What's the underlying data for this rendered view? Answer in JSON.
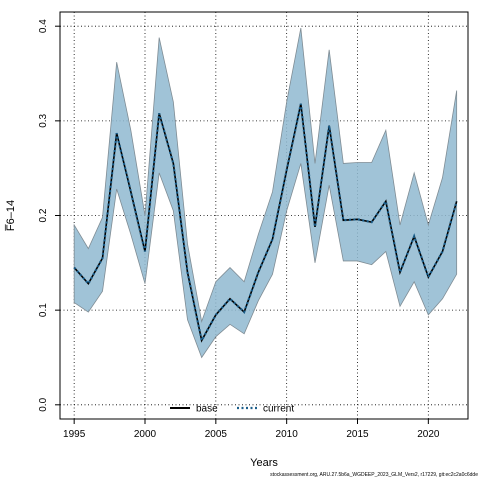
{
  "chart_data": {
    "type": "line",
    "xlabel": "Years",
    "ylabel": "F̅6–14",
    "xlim": [
      1994,
      2022.8
    ],
    "ylim": [
      -0.015,
      0.415
    ],
    "x_ticks": [
      1995,
      2000,
      2005,
      2010,
      2015,
      2020
    ],
    "y_ticks": [
      0.0,
      0.1,
      0.2,
      0.3,
      0.4
    ],
    "y_tick_labels": [
      "0.0",
      "0.1",
      "0.2",
      "0.3",
      "0.4"
    ],
    "grid": true,
    "legend_position": "bottom-left",
    "x": [
      1995,
      1996,
      1997,
      1998,
      1999,
      2000,
      2001,
      2002,
      2003,
      2004,
      2005,
      2006,
      2007,
      2008,
      2009,
      2010,
      2011,
      2012,
      2013,
      2014,
      2015,
      2016,
      2017,
      2018,
      2019,
      2020,
      2021,
      2022
    ],
    "series": [
      {
        "name": "base",
        "style": "solid",
        "color": "#000000",
        "values": [
          0.145,
          0.128,
          0.155,
          0.287,
          0.225,
          0.162,
          0.308,
          0.255,
          0.14,
          0.068,
          0.095,
          0.112,
          0.098,
          0.14,
          0.175,
          0.248,
          0.318,
          0.188,
          0.295,
          0.195,
          0.196,
          0.193,
          0.215,
          0.14,
          0.178,
          0.135,
          0.162,
          0.215
        ]
      },
      {
        "name": "current",
        "style": "dotted",
        "color": "#1b5e8a",
        "values": [
          0.145,
          0.128,
          0.155,
          0.287,
          0.225,
          0.162,
          0.308,
          0.255,
          0.14,
          0.068,
          0.095,
          0.112,
          0.098,
          0.14,
          0.175,
          0.248,
          0.318,
          0.188,
          0.295,
          0.195,
          0.196,
          0.193,
          0.215,
          0.14,
          0.178,
          0.135,
          0.162,
          0.215
        ]
      }
    ],
    "band": {
      "color": "#8fb9d0",
      "lower": [
        0.108,
        0.098,
        0.12,
        0.228,
        0.18,
        0.128,
        0.245,
        0.205,
        0.09,
        0.05,
        0.072,
        0.085,
        0.075,
        0.11,
        0.138,
        0.205,
        0.255,
        0.15,
        0.232,
        0.152,
        0.152,
        0.148,
        0.162,
        0.104,
        0.13,
        0.095,
        0.112,
        0.138
      ],
      "upper": [
        0.19,
        0.165,
        0.198,
        0.362,
        0.29,
        0.2,
        0.388,
        0.32,
        0.17,
        0.088,
        0.13,
        0.145,
        0.13,
        0.18,
        0.225,
        0.32,
        0.398,
        0.255,
        0.375,
        0.255,
        0.256,
        0.256,
        0.29,
        0.19,
        0.245,
        0.19,
        0.24,
        0.332
      ]
    }
  },
  "footer_text": "stockassessment.org, ARU.27.5b6a_WGDEEP_2023_GLM_Vers2, r17229, git:ec2c2a0c6dde"
}
